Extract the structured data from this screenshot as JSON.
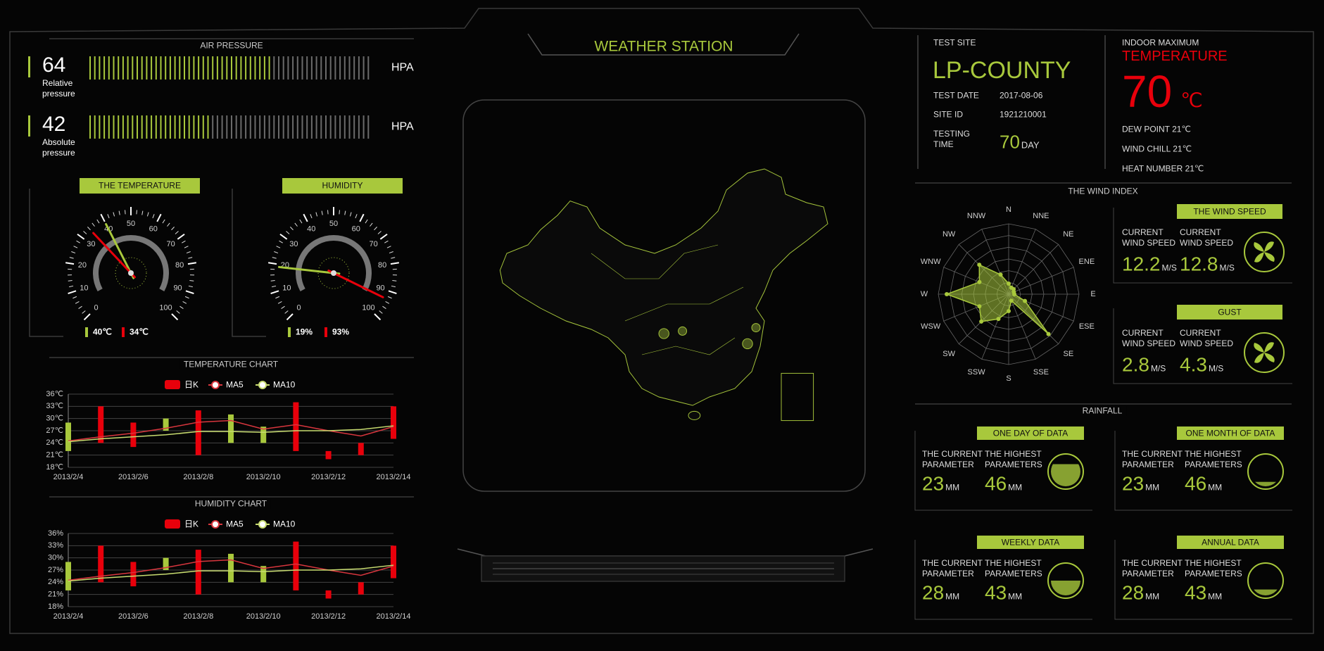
{
  "header": {
    "title": "WEATHER STATION"
  },
  "air_pressure": {
    "title": "AIR PRESSURE",
    "range": [
      0,
      100
    ],
    "items": [
      {
        "value": 64,
        "label": "Relative pressure",
        "unit": "HPA"
      },
      {
        "value": 42,
        "label": "Absolute pressure",
        "unit": "HPA"
      }
    ]
  },
  "gauges": [
    {
      "title": "THE TEMPERATURE",
      "range": [
        0,
        100
      ],
      "ticks": [
        0,
        10,
        20,
        30,
        40,
        50,
        60,
        70,
        80,
        90,
        100
      ],
      "readings": [
        {
          "value": 40,
          "value_label": "40℃",
          "color": "#a8c83c"
        },
        {
          "value": 34,
          "value_label": "34℃",
          "color": "#e8000b"
        }
      ]
    },
    {
      "title": "HUMIDITY",
      "range": [
        0,
        100
      ],
      "ticks": [
        0,
        10,
        20,
        30,
        40,
        50,
        60,
        70,
        80,
        90,
        100
      ],
      "readings": [
        {
          "value": 19,
          "value_label": "19%",
          "color": "#a8c83c"
        },
        {
          "value": 93,
          "value_label": "93%",
          "color": "#e8000b"
        }
      ]
    }
  ],
  "chart_data": [
    {
      "type": "candlestick",
      "title": "TEMPERATURE CHART",
      "categories": [
        "2013/2/4",
        null,
        "2013/2/6",
        null,
        "2013/2/8",
        null,
        "2013/2/10",
        null,
        "2013/2/12",
        null,
        "2013/2/14"
      ],
      "candles": {
        "name": "日K",
        "up_color": "#e8000b",
        "down_color": "#a8c83c",
        "open": [
          29,
          24,
          23,
          30,
          21,
          31,
          28,
          22,
          20,
          21,
          25
        ],
        "close": [
          22,
          33,
          29,
          27,
          32,
          24,
          24,
          34,
          22,
          24,
          33
        ]
      },
      "series": [
        {
          "name": "MA5",
          "color": "#d9363e",
          "values": [
            24.5,
            25.5,
            26.4,
            27.6,
            29.1,
            29.5,
            27.4,
            28.5,
            27,
            25.7,
            28
          ]
        },
        {
          "name": "MA10",
          "color": "#c8dc70",
          "values": [
            24.3,
            25,
            25.5,
            26,
            26.8,
            26.8,
            26.6,
            27,
            27,
            27.3,
            28.2
          ]
        }
      ],
      "ylim": [
        18,
        36
      ],
      "yticks": [
        {
          "value": 18,
          "label": "18℃"
        },
        {
          "value": 21,
          "label": "21℃"
        },
        {
          "value": 24,
          "label": "24℃"
        },
        {
          "value": 27,
          "label": "27℃"
        },
        {
          "value": 30,
          "label": "30℃"
        },
        {
          "value": 33,
          "label": "33℃"
        },
        {
          "value": 36,
          "label": "36℃"
        }
      ],
      "grid": true
    },
    {
      "type": "candlestick",
      "title": "HUMIDITY CHART",
      "categories": [
        "2013/2/4",
        null,
        "2013/2/6",
        null,
        "2013/2/8",
        null,
        "2013/2/10",
        null,
        "2013/2/12",
        null,
        "2013/2/14"
      ],
      "candles": {
        "name": "日K",
        "up_color": "#e8000b",
        "down_color": "#a8c83c",
        "open": [
          29,
          24,
          23,
          30,
          21,
          31,
          28,
          22,
          20,
          21,
          25
        ],
        "close": [
          22,
          33,
          29,
          27,
          32,
          24,
          24,
          34,
          22,
          24,
          33
        ]
      },
      "series": [
        {
          "name": "MA5",
          "color": "#d9363e",
          "values": [
            24.5,
            25.5,
            26.4,
            27.6,
            29.1,
            29.5,
            27.4,
            28.5,
            27,
            25.7,
            28
          ]
        },
        {
          "name": "MA10",
          "color": "#c8dc70",
          "values": [
            24.3,
            25,
            25.5,
            26,
            26.8,
            26.8,
            26.6,
            27,
            27,
            27.3,
            28.2
          ]
        }
      ],
      "ylim": [
        18,
        36
      ],
      "yticks": [
        {
          "value": 18,
          "label": "18%"
        },
        {
          "value": 21,
          "label": "21%"
        },
        {
          "value": 24,
          "label": "24%"
        },
        {
          "value": 27,
          "label": "27%"
        },
        {
          "value": 30,
          "label": "30%"
        },
        {
          "value": 33,
          "label": "33%"
        },
        {
          "value": 36,
          "label": "36%"
        }
      ],
      "grid": true
    },
    {
      "type": "radar",
      "title": "THE WIND INDEX",
      "categories": [
        "N",
        "NNE",
        "NE",
        "ENE",
        "E",
        "ESE",
        "SE",
        "SSE",
        "S",
        "SSW",
        "SW",
        "WSW",
        "W",
        "WNW",
        "NW",
        "NNW"
      ],
      "values": [
        15,
        10,
        10,
        8,
        8,
        25,
        80,
        10,
        24,
        38,
        55,
        45,
        88,
        45,
        59,
        30
      ],
      "rlim": [
        0,
        100
      ],
      "color": "#a8c83c"
    }
  ],
  "site": {
    "label": "TEST SITE",
    "name": "LP-COUNTY",
    "rows": [
      {
        "label": "TEST DATE",
        "value": "2017-08-06"
      },
      {
        "label": "SITE ID",
        "value": "1921210001"
      }
    ],
    "testing_time": {
      "label": "TESTING TIME",
      "value": 70,
      "unit": "DAY"
    }
  },
  "indoor": {
    "label": "INDOOR MAXIMUM",
    "title": "TEMPERATURE",
    "value": 70,
    "unit": "℃",
    "details": [
      "DEW POINT 21℃",
      "WIND CHILL 21℃",
      "HEAT NUMBER 21℃"
    ]
  },
  "wind": [
    {
      "title": "THE WIND SPEED",
      "readings": [
        {
          "label": "CURRENT WIND SPEED",
          "value": 12.2,
          "unit": "M/S"
        },
        {
          "label": "CURRENT WIND SPEED",
          "value": 12.8,
          "unit": "M/S"
        }
      ]
    },
    {
      "title": "GUST",
      "readings": [
        {
          "label": "CURRENT WIND SPEED",
          "value": 2.8,
          "unit": "M/S"
        },
        {
          "label": "CURRENT WIND SPEED",
          "value": 4.3,
          "unit": "M/S"
        }
      ]
    }
  ],
  "rainfall": {
    "title": "RAINFALL",
    "panels": [
      {
        "title": "ONE DAY OF DATA",
        "current_label": "THE CURRENT PARAMETER",
        "current": 23,
        "highest_label": "THE HIGHEST PARAMETERS",
        "highest": 46,
        "unit": "MM",
        "level": 75
      },
      {
        "title": "ONE MONTH OF DATA",
        "current_label": "THE CURRENT PARAMETER",
        "current": 23,
        "highest_label": "THE HIGHEST PARAMETERS",
        "highest": 46,
        "unit": "MM",
        "level": 15
      },
      {
        "title": "WEEKLY DATA",
        "current_label": "THE CURRENT PARAMETER",
        "current": 28,
        "highest_label": "THE HIGHEST PARAMETERS",
        "highest": 43,
        "unit": "MM",
        "level": 50
      },
      {
        "title": "ANNUAL DATA",
        "current_label": "THE CURRENT PARAMETER",
        "current": 28,
        "highest_label": "THE HIGHEST PARAMETERS",
        "highest": 43,
        "unit": "MM",
        "level": 20
      }
    ]
  }
}
